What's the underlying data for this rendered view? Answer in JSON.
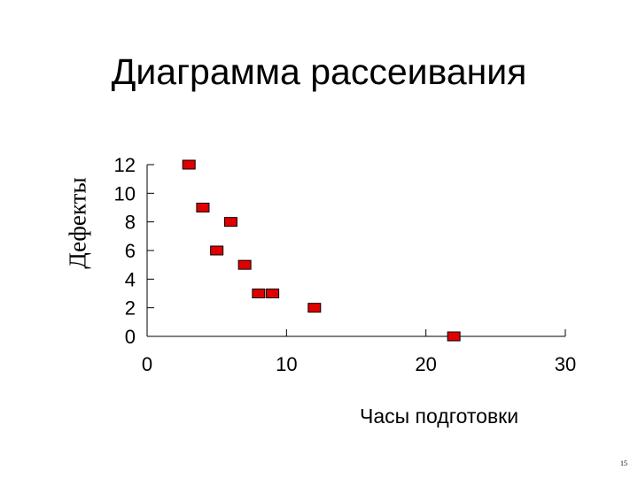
{
  "chart_data": {
    "type": "scatter",
    "title": "Диаграмма рассеивания",
    "xlabel": "Часы подготовки",
    "ylabel": "Дефекты",
    "xlim": [
      0,
      30
    ],
    "ylim": [
      0,
      12
    ],
    "xticks": [
      "0",
      "10",
      "20",
      "30"
    ],
    "yticks": [
      "0",
      "2",
      "4",
      "6",
      "8",
      "10",
      "12"
    ],
    "grid": false,
    "marker_color": "#E00000",
    "points": [
      {
        "x": 3,
        "y": 12
      },
      {
        "x": 4,
        "y": 9
      },
      {
        "x": 5,
        "y": 6
      },
      {
        "x": 6,
        "y": 8
      },
      {
        "x": 7,
        "y": 5
      },
      {
        "x": 8,
        "y": 3
      },
      {
        "x": 9,
        "y": 3
      },
      {
        "x": 12,
        "y": 2
      },
      {
        "x": 22,
        "y": 0
      }
    ]
  },
  "page_number": "15"
}
